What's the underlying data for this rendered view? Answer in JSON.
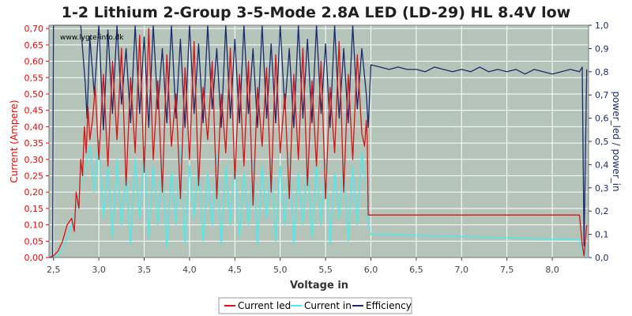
{
  "chart_data": {
    "type": "line",
    "title": "1-2 Lithium 2-Group 3-5-Mode 2.8A LED (LD-29) HL 8.4V low",
    "watermark": "www.lygte-info.dk",
    "xlabel": "Voltage in",
    "ylabel_left": "Current (Ampere)",
    "ylabel_right": "power_led / power_in",
    "xlim": [
      2.45,
      8.4
    ],
    "ylim_left": [
      0,
      0.71
    ],
    "ylim_right": [
      0,
      1.0
    ],
    "x_ticks": [
      "2,5",
      "3,0",
      "3,5",
      "4,0",
      "4,5",
      "5,0",
      "5,5",
      "6,0",
      "6,5",
      "7,0",
      "7,5",
      "8,0"
    ],
    "x_tick_values": [
      2.5,
      3.0,
      3.5,
      4.0,
      4.5,
      5.0,
      5.5,
      6.0,
      6.5,
      7.0,
      7.5,
      8.0
    ],
    "y_left_ticks": [
      "0,00",
      "0,05",
      "0,10",
      "0,15",
      "0,20",
      "0,25",
      "0,30",
      "0,35",
      "0,40",
      "0,45",
      "0,50",
      "0,55",
      "0,60",
      "0,65",
      "0,70"
    ],
    "y_left_tick_values": [
      0,
      0.05,
      0.1,
      0.15,
      0.2,
      0.25,
      0.3,
      0.35,
      0.4,
      0.45,
      0.5,
      0.55,
      0.6,
      0.65,
      0.7
    ],
    "y_right_ticks": [
      "0,0",
      "0,1",
      "0,2",
      "0,3",
      "0,4",
      "0,5",
      "0,6",
      "0,7",
      "0,8",
      "0,9",
      "1,0"
    ],
    "y_right_tick_values": [
      0,
      0.1,
      0.2,
      0.3,
      0.4,
      0.5,
      0.6,
      0.7,
      0.8,
      0.9,
      1.0
    ],
    "grid": true,
    "legend_position": "bottom",
    "colors": {
      "plot_bg": "#b4c4b9",
      "grid": "#ffffff",
      "left_axis": "#ff0000",
      "right_axis": "#1a2a6c",
      "x_axis": "#444444"
    },
    "series": [
      {
        "name": "Current led",
        "axis": "left",
        "color": "#dd1111",
        "x": [
          2.45,
          2.5,
          2.55,
          2.6,
          2.65,
          2.7,
          2.73,
          2.75,
          2.78,
          2.8,
          2.82,
          2.84,
          2.86,
          2.88,
          2.9,
          2.93,
          2.96,
          3.0,
          3.05,
          3.1,
          3.15,
          3.2,
          3.25,
          3.3,
          3.35,
          3.4,
          3.45,
          3.5,
          3.55,
          3.6,
          3.65,
          3.7,
          3.75,
          3.8,
          3.85,
          3.9,
          3.95,
          4.0,
          4.05,
          4.1,
          4.15,
          4.2,
          4.25,
          4.3,
          4.35,
          4.4,
          4.45,
          4.5,
          4.55,
          4.6,
          4.65,
          4.7,
          4.75,
          4.8,
          4.85,
          4.9,
          4.95,
          5.0,
          5.05,
          5.1,
          5.15,
          5.2,
          5.25,
          5.3,
          5.35,
          5.4,
          5.45,
          5.5,
          5.55,
          5.6,
          5.65,
          5.7,
          5.75,
          5.8,
          5.85,
          5.9,
          5.93,
          5.95,
          5.96,
          5.97,
          6.0,
          6.5,
          7.0,
          7.5,
          8.0,
          8.3,
          8.33,
          8.35,
          8.38
        ],
        "values": [
          0.0,
          0.005,
          0.02,
          0.05,
          0.1,
          0.12,
          0.08,
          0.2,
          0.15,
          0.3,
          0.25,
          0.4,
          0.32,
          0.46,
          0.36,
          0.42,
          0.52,
          0.3,
          0.56,
          0.28,
          0.6,
          0.36,
          0.64,
          0.22,
          0.55,
          0.32,
          0.68,
          0.26,
          0.7,
          0.3,
          0.54,
          0.2,
          0.62,
          0.34,
          0.5,
          0.18,
          0.58,
          0.3,
          0.66,
          0.22,
          0.52,
          0.36,
          0.6,
          0.18,
          0.5,
          0.32,
          0.64,
          0.24,
          0.56,
          0.28,
          0.6,
          0.16,
          0.52,
          0.34,
          0.58,
          0.2,
          0.62,
          0.32,
          0.5,
          0.18,
          0.56,
          0.3,
          0.64,
          0.22,
          0.54,
          0.28,
          0.6,
          0.18,
          0.52,
          0.32,
          0.66,
          0.2,
          0.56,
          0.3,
          0.62,
          0.38,
          0.34,
          0.42,
          0.36,
          0.13,
          0.13,
          0.13,
          0.13,
          0.13,
          0.13,
          0.13,
          0.04,
          0.005,
          0.1
        ]
      },
      {
        "name": "Current in",
        "axis": "left",
        "color": "#44eeee",
        "x": [
          2.45,
          2.5,
          2.55,
          2.6,
          2.65,
          2.7,
          2.75,
          2.8,
          2.85,
          2.9,
          2.95,
          3.0,
          3.05,
          3.1,
          3.15,
          3.2,
          3.25,
          3.3,
          3.35,
          3.4,
          3.45,
          3.5,
          3.55,
          3.6,
          3.65,
          3.7,
          3.75,
          3.8,
          3.85,
          3.9,
          3.95,
          4.0,
          4.05,
          4.1,
          4.15,
          4.2,
          4.25,
          4.3,
          4.35,
          4.4,
          4.45,
          4.5,
          4.55,
          4.6,
          4.65,
          4.7,
          4.75,
          4.8,
          4.85,
          4.9,
          4.95,
          5.0,
          5.05,
          5.1,
          5.15,
          5.2,
          5.25,
          5.3,
          5.35,
          5.4,
          5.45,
          5.5,
          5.55,
          5.6,
          5.65,
          5.7,
          5.75,
          5.8,
          5.85,
          5.9,
          5.95,
          5.97,
          6.0,
          6.5,
          7.0,
          7.5,
          8.0,
          8.3,
          8.33,
          8.36,
          8.38
        ],
        "values": [
          0.0,
          0.0,
          0.01,
          0.03,
          0.06,
          0.1,
          0.15,
          0.22,
          0.28,
          0.34,
          0.2,
          0.36,
          0.12,
          0.28,
          0.06,
          0.3,
          0.1,
          0.26,
          0.04,
          0.3,
          0.12,
          0.34,
          0.06,
          0.28,
          0.1,
          0.3,
          0.03,
          0.26,
          0.1,
          0.34,
          0.04,
          0.28,
          0.12,
          0.3,
          0.05,
          0.26,
          0.1,
          0.32,
          0.04,
          0.28,
          0.1,
          0.3,
          0.06,
          0.26,
          0.1,
          0.3,
          0.04,
          0.28,
          0.12,
          0.3,
          0.05,
          0.28,
          0.1,
          0.32,
          0.04,
          0.26,
          0.1,
          0.3,
          0.06,
          0.28,
          0.1,
          0.3,
          0.04,
          0.26,
          0.12,
          0.3,
          0.05,
          0.28,
          0.1,
          0.32,
          0.22,
          0.1,
          0.07,
          0.068,
          0.064,
          0.06,
          0.056,
          0.054,
          0.02,
          0.005,
          0.04
        ]
      },
      {
        "name": "Efficiency",
        "axis": "right",
        "color": "#1a2a6c",
        "x": [
          2.45,
          2.49,
          2.5,
          2.52,
          2.55,
          2.6,
          2.65,
          2.7,
          2.75,
          2.8,
          2.85,
          2.87,
          2.9,
          2.95,
          3.0,
          3.05,
          3.1,
          3.15,
          3.2,
          3.25,
          3.3,
          3.35,
          3.4,
          3.45,
          3.5,
          3.55,
          3.6,
          3.65,
          3.7,
          3.75,
          3.8,
          3.85,
          3.9,
          3.95,
          4.0,
          4.05,
          4.1,
          4.15,
          4.2,
          4.25,
          4.3,
          4.35,
          4.4,
          4.45,
          4.5,
          4.55,
          4.6,
          4.65,
          4.7,
          4.75,
          4.8,
          4.85,
          4.9,
          4.95,
          5.0,
          5.05,
          5.1,
          5.15,
          5.2,
          5.25,
          5.3,
          5.35,
          5.4,
          5.45,
          5.5,
          5.55,
          5.6,
          5.65,
          5.7,
          5.75,
          5.8,
          5.85,
          5.9,
          5.95,
          5.97,
          6.0,
          6.1,
          6.2,
          6.3,
          6.4,
          6.5,
          6.6,
          6.7,
          6.8,
          6.9,
          7.0,
          7.1,
          7.2,
          7.3,
          7.4,
          7.5,
          7.6,
          7.7,
          7.8,
          7.9,
          8.0,
          8.1,
          8.2,
          8.3,
          8.33,
          8.35,
          8.38
        ],
        "values": [
          0.0,
          0.0,
          1.0,
          1.0,
          1.0,
          1.0,
          1.0,
          1.0,
          1.0,
          1.0,
          0.75,
          0.6,
          0.95,
          0.7,
          1.0,
          0.55,
          0.98,
          0.62,
          1.0,
          0.66,
          0.9,
          0.58,
          1.0,
          0.62,
          0.95,
          0.56,
          1.0,
          0.64,
          0.9,
          0.58,
          1.0,
          0.6,
          0.94,
          0.56,
          1.0,
          0.62,
          0.92,
          0.58,
          1.0,
          0.64,
          0.9,
          0.56,
          1.0,
          0.6,
          0.94,
          0.58,
          1.0,
          0.62,
          0.9,
          0.56,
          1.0,
          0.6,
          0.92,
          0.58,
          1.0,
          0.64,
          0.9,
          0.56,
          1.0,
          0.6,
          0.94,
          0.58,
          1.0,
          0.62,
          0.92,
          0.56,
          1.0,
          0.6,
          0.9,
          0.58,
          1.0,
          0.64,
          0.9,
          0.7,
          0.56,
          0.83,
          0.82,
          0.81,
          0.82,
          0.81,
          0.81,
          0.8,
          0.82,
          0.81,
          0.8,
          0.81,
          0.8,
          0.82,
          0.8,
          0.81,
          0.8,
          0.81,
          0.79,
          0.81,
          0.8,
          0.79,
          0.8,
          0.81,
          0.8,
          0.82,
          0.05,
          0.81
        ]
      }
    ]
  }
}
